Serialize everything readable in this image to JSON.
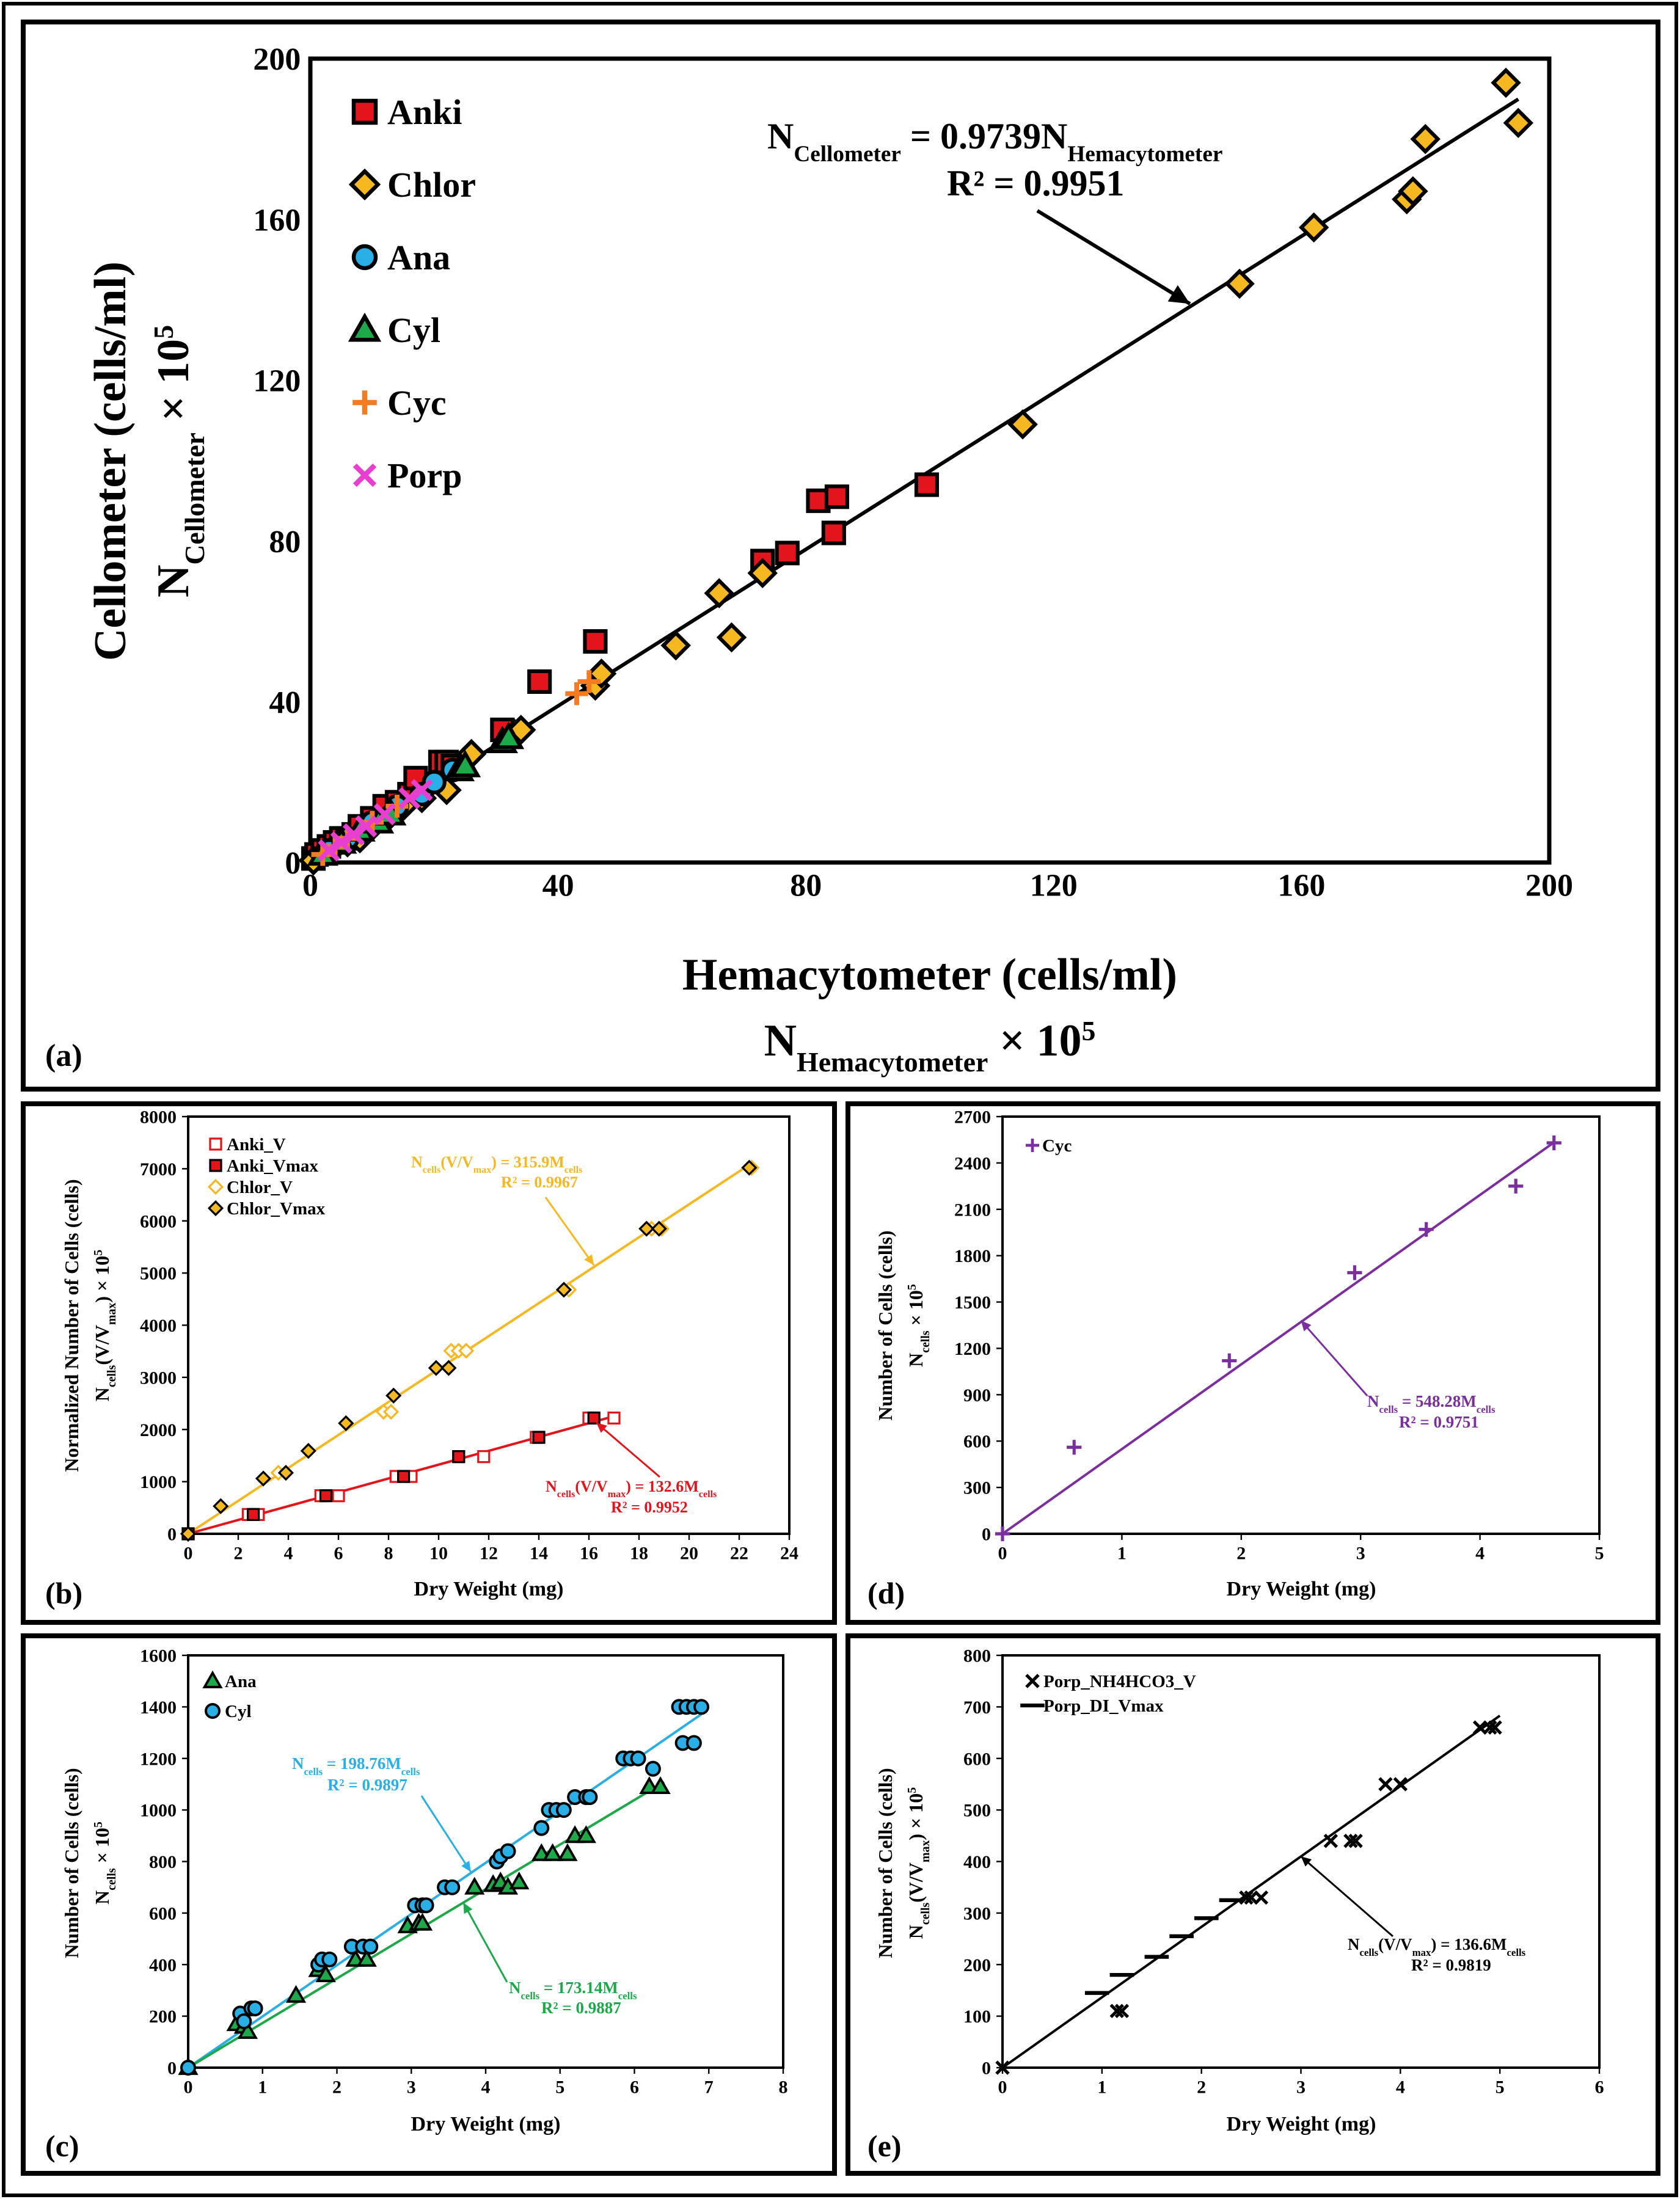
{
  "panels": {
    "a": {
      "label": "(a)"
    },
    "b": {
      "label": "(b)"
    },
    "c": {
      "label": "(c)"
    },
    "d": {
      "label": "(d)"
    },
    "e": {
      "label": "(e)"
    }
  },
  "chart_data": [
    {
      "id": "a",
      "type": "scatter",
      "xlabel": "Hemacytometer (cells/ml)",
      "xlabel2": "N",
      "xlabel2_sub": "Hemacytometer",
      "xlabel2_tail": " × 10",
      "xlabel2_sup": "5",
      "ylabel": "Cellometer (cells/ml)",
      "ylabel2": "N",
      "ylabel2_sub": "Cellometer",
      "ylabel2_tail": " × 10",
      "ylabel2_sup": "5",
      "xlim": [
        0,
        200
      ],
      "ylim": [
        0,
        200
      ],
      "xticks": [
        0,
        40,
        80,
        120,
        160,
        200
      ],
      "yticks": [
        0,
        40,
        80,
        120,
        160,
        200
      ],
      "equation": "N",
      "equation_sub": "Cellometer",
      "equation_mid": " = 0.9739N",
      "equation_sub2": "Hemacytometer",
      "r2": "R² = 0.9951",
      "fit": {
        "slope": 0.9739,
        "x": [
          0,
          195
        ]
      },
      "arrow_target": [
        142,
        139
      ],
      "series": [
        {
          "name": "Anki",
          "marker": "square",
          "color": "#e3141b",
          "x": [
            0.5,
            1,
            2,
            3,
            4,
            5,
            6,
            7,
            8,
            10,
            12,
            14,
            16,
            17,
            21,
            22,
            23,
            31,
            37,
            46,
            73,
            77,
            82,
            85,
            84.5,
            99.5
          ],
          "y": [
            1,
            2,
            3,
            4,
            5,
            6,
            6,
            7,
            9,
            11,
            14,
            15,
            17,
            21,
            25,
            25,
            24,
            33,
            45,
            55,
            75,
            77,
            90,
            91,
            82,
            94
          ]
        },
        {
          "name": "Chlor",
          "marker": "diamond",
          "color": "#f5b820",
          "x": [
            0.5,
            2,
            4,
            6,
            8,
            9,
            10,
            13,
            15,
            18,
            22,
            26,
            33,
            34,
            46,
            47,
            59,
            66,
            68,
            73,
            115,
            150,
            162,
            177,
            178,
            180,
            193,
            195
          ],
          "y": [
            0.5,
            2,
            4,
            5,
            6,
            8,
            9,
            12,
            14,
            16,
            18,
            27,
            32,
            33,
            44,
            47,
            54,
            67,
            56,
            72,
            109,
            144,
            158,
            165,
            167,
            180,
            194,
            184
          ]
        },
        {
          "name": "Ana",
          "marker": "circle",
          "color": "#29aee6",
          "x": [
            3,
            6,
            10,
            14,
            18,
            20,
            23
          ],
          "y": [
            3,
            6,
            10,
            14,
            17,
            20,
            23
          ]
        },
        {
          "name": "Cyl",
          "marker": "triangle",
          "color": "#1da84a",
          "x": [
            2,
            5,
            8,
            11,
            13,
            24,
            25,
            31,
            32
          ],
          "y": [
            2,
            5,
            8,
            10,
            12,
            23,
            24,
            30,
            31
          ]
        },
        {
          "name": "Cyc",
          "marker": "plus",
          "color": "#f47b20",
          "x": [
            2,
            4,
            6,
            10,
            14,
            43,
            45
          ],
          "y": [
            2,
            4,
            6,
            10,
            14,
            42,
            45
          ]
        },
        {
          "name": "Porp",
          "marker": "x",
          "color": "#e83fd1",
          "x": [
            3,
            5,
            7,
            9,
            12,
            16,
            18
          ],
          "y": [
            3,
            5,
            7,
            9,
            12,
            16,
            18
          ]
        }
      ]
    },
    {
      "id": "b",
      "type": "scatter",
      "xlabel": "Dry Weight (mg)",
      "ylabel": "Normalized Number of Cells (cells)",
      "ylabel2": "N",
      "ylabel2_sub": "cells",
      "ylabel2_mid": "(V/V",
      "ylabel2_sub2": "max",
      "ylabel2_tail": ") × 10",
      "ylabel2_sup": "5",
      "xlim": [
        0,
        24
      ],
      "ylim": [
        0,
        8000
      ],
      "xticks": [
        0,
        2,
        4,
        6,
        8,
        10,
        12,
        14,
        16,
        18,
        20,
        22,
        24
      ],
      "yticks": [
        0,
        1000,
        2000,
        3000,
        4000,
        5000,
        6000,
        7000,
        8000
      ],
      "fits": [
        {
          "name": "Chlor",
          "slope": 315.9,
          "x": [
            0,
            22.4
          ],
          "color": "#f5b820",
          "eq": "N",
          "eq_sub": "cells",
          "eq_mid": "(V/V",
          "eq_sub2": "max",
          "eq_mid2": ") = 315.9M",
          "eq_sub3": "cells",
          "r2": "R² = 0.9967",
          "arrow_target": [
            16.2,
            5150
          ]
        },
        {
          "name": "Anki",
          "slope": 132.6,
          "x": [
            0,
            17
          ],
          "color": "#e3141b",
          "eq": "N",
          "eq_sub": "cells",
          "eq_mid": "(V/V",
          "eq_sub2": "max",
          "eq_mid2": ") = 132.6M",
          "eq_sub3": "cells",
          "r2": "R² = 0.9952",
          "arrow_target": [
            16.3,
            2130
          ]
        }
      ],
      "series": [
        {
          "name": "Anki_V",
          "marker": "square-open",
          "color": "#e3141b",
          "x": [
            0,
            2.4,
            2.8,
            5.3,
            6,
            8.3,
            8.9,
            10.8,
            11.8,
            13.9,
            16,
            17
          ],
          "y": [
            0,
            370,
            370,
            730,
            730,
            1100,
            1100,
            1480,
            1480,
            1850,
            2220,
            2220
          ]
        },
        {
          "name": "Anki_Vmax",
          "marker": "square",
          "color": "#e3141b",
          "x": [
            0,
            2.6,
            5.5,
            8.6,
            10.8,
            14,
            16.2
          ],
          "y": [
            0,
            370,
            730,
            1100,
            1480,
            1850,
            2220
          ]
        },
        {
          "name": "Chlor_V",
          "marker": "diamond-open",
          "color": "#f5b820",
          "x": [
            0,
            3.6,
            7.8,
            8.1,
            10.5,
            10.8,
            11.1,
            15.2,
            18.5,
            18.9,
            22.5
          ],
          "y": [
            0,
            1170,
            2340,
            2340,
            3510,
            3510,
            3510,
            4680,
            5850,
            5850,
            7020
          ]
        },
        {
          "name": "Chlor_Vmax",
          "marker": "diamond",
          "color": "#f5b820",
          "x": [
            0,
            1.3,
            3,
            3.9,
            4.8,
            6.3,
            8.2,
            9.9,
            10.4,
            15,
            18.3,
            18.8,
            22.4
          ],
          "y": [
            0,
            530,
            1060,
            1170,
            1590,
            2120,
            2650,
            3180,
            3180,
            4680,
            5850,
            5850,
            7020
          ]
        }
      ]
    },
    {
      "id": "d",
      "type": "scatter",
      "xlabel": "Dry Weight (mg)",
      "ylabel": "Number of Cells (cells)",
      "ylabel2": "N",
      "ylabel2_sub": "cells",
      "ylabel2_tail": " × 10",
      "ylabel2_sup": "5",
      "xlim": [
        0,
        5
      ],
      "ylim": [
        0,
        2700
      ],
      "xticks": [
        0,
        1,
        2,
        3,
        4,
        5
      ],
      "yticks": [
        0,
        300,
        600,
        900,
        1200,
        1500,
        1800,
        2100,
        2400,
        2700
      ],
      "fit": {
        "slope": 548.28,
        "x": [
          0,
          4.62
        ],
        "color": "#7b2f9e"
      },
      "equation": "N",
      "equation_sub": "cells",
      "equation_mid": " = 548.28M",
      "equation_sub2": "cells",
      "r2": "R² = 0.9751",
      "arrow_target": [
        2.5,
        1380
      ],
      "series": [
        {
          "name": "Cyc",
          "marker": "plus",
          "color": "#7b2f9e",
          "x": [
            0,
            0.6,
            1.9,
            2.95,
            3.55,
            4.3,
            4.62
          ],
          "y": [
            0,
            560,
            1120,
            1690,
            1970,
            2250,
            2530
          ]
        }
      ]
    },
    {
      "id": "c",
      "type": "scatter",
      "xlabel": "Dry Weight (mg)",
      "ylabel": "Number of Cells (cells)",
      "ylabel2": "N",
      "ylabel2_sub": "cells",
      "ylabel2_tail": " × 10",
      "ylabel2_sup": "5",
      "xlim": [
        0,
        8
      ],
      "ylim": [
        0,
        1600
      ],
      "xticks": [
        0,
        1,
        2,
        3,
        4,
        5,
        6,
        7,
        8
      ],
      "yticks": [
        0,
        200,
        400,
        600,
        800,
        1000,
        1200,
        1400,
        1600
      ],
      "fits": [
        {
          "name": "Cyl",
          "slope": 198.76,
          "x": [
            0,
            6.9
          ],
          "color": "#29aee6",
          "eq": "N",
          "eq_sub": "cells",
          "eq_mid2": " = 198.76M",
          "eq_sub3": "cells",
          "r2": "R² = 0.9897",
          "arrow_target": [
            3.8,
            760
          ]
        },
        {
          "name": "Ana",
          "slope": 173.14,
          "x": [
            0,
            6.4
          ],
          "color": "#1da84a",
          "eq": "N",
          "eq_sub": "cells",
          "eq_mid2": " = 173.14M",
          "eq_sub3": "cells",
          "r2": "R² = 0.9887",
          "arrow_target": [
            3.7,
            640
          ]
        }
      ],
      "series": [
        {
          "name": "Ana",
          "marker": "triangle",
          "color": "#1da84a",
          "x": [
            0,
            0.65,
            0.75,
            0.8,
            1.45,
            1.75,
            1.85,
            2.25,
            2.4,
            2.95,
            3.1,
            3.15,
            3.85,
            4.1,
            4.2,
            4.3,
            4.45,
            4.75,
            4.9,
            5.1,
            5.2,
            5.35,
            6.2,
            6.35
          ],
          "y": [
            0,
            170,
            160,
            140,
            280,
            380,
            360,
            420,
            420,
            550,
            560,
            560,
            700,
            710,
            720,
            700,
            720,
            830,
            830,
            830,
            900,
            900,
            1090,
            1090
          ]
        },
        {
          "name": "Cyl",
          "marker": "circle",
          "color": "#29aee6",
          "x": [
            0,
            0.7,
            0.75,
            0.85,
            0.9,
            1.75,
            1.8,
            1.9,
            2.2,
            2.35,
            2.45,
            3.05,
            3.15,
            3.2,
            3.45,
            3.55,
            4.15,
            4.2,
            4.3,
            4.75,
            4.85,
            4.95,
            5.05,
            5.2,
            5.35,
            5.4,
            5.85,
            5.95,
            6.05,
            6.25,
            6.6,
            6.7,
            6.8,
            6.9,
            6.65,
            6.8
          ],
          "y": [
            0,
            210,
            180,
            230,
            230,
            400,
            420,
            420,
            470,
            470,
            470,
            630,
            630,
            630,
            700,
            700,
            800,
            820,
            840,
            930,
            1000,
            1000,
            1000,
            1050,
            1050,
            1050,
            1200,
            1200,
            1200,
            1160,
            1400,
            1400,
            1400,
            1400,
            1260,
            1260
          ]
        }
      ]
    },
    {
      "id": "e",
      "type": "scatter",
      "xlabel": "Dry Weight (mg)",
      "ylabel": "Number of Cells (cells)",
      "ylabel2": "N",
      "ylabel2_sub": "cells",
      "ylabel2_mid": "(V/V",
      "ylabel2_sub2": "max",
      "ylabel2_tail": ") × 10",
      "ylabel2_sup": "5",
      "xlim": [
        0,
        6
      ],
      "ylim": [
        0,
        800
      ],
      "xticks": [
        0,
        1,
        2,
        3,
        4,
        5,
        6
      ],
      "yticks": [
        0,
        100,
        200,
        300,
        400,
        500,
        600,
        700,
        800
      ],
      "fit": {
        "slope": 136.6,
        "x": [
          0,
          5
        ],
        "color": "#000000"
      },
      "equation": "N",
      "equation_sub": "cells",
      "equation_mid": "(V/V",
      "equation_sub2": "max",
      "equation_mid2": ") = 136.6M",
      "equation_sub3": "cells",
      "r2": "R² = 0.9819",
      "arrow_target": [
        3.0,
        410
      ],
      "series": [
        {
          "name": "Porp_NH4HCO3_V",
          "marker": "x",
          "color": "#000000",
          "x": [
            0,
            1.15,
            1.2,
            2.45,
            2.5,
            2.6,
            3.3,
            3.5,
            3.55,
            3.85,
            4.0,
            4.8,
            4.9,
            4.95
          ],
          "y": [
            0,
            110,
            110,
            330,
            330,
            330,
            440,
            440,
            440,
            550,
            550,
            660,
            660,
            660
          ]
        },
        {
          "name": "Porp_DI_Vmax",
          "marker": "dash",
          "color": "#000000",
          "x": [
            0.95,
            1.2,
            1.55,
            1.8,
            2.05,
            2.3
          ],
          "y": [
            145,
            180,
            215,
            255,
            290,
            325
          ]
        }
      ]
    }
  ]
}
